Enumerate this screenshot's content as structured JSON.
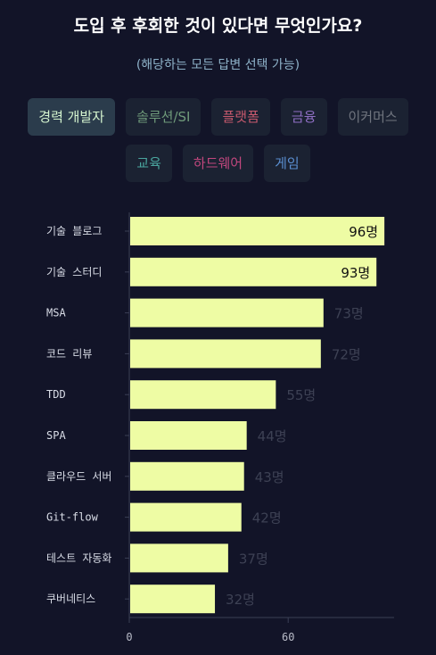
{
  "header": {
    "title": "도입 후 후회한 것이 있다면 무엇인가요?",
    "subtitle": "(해당하는 모든 답변 선택 가능)"
  },
  "tabs": [
    {
      "label": "경력 개발자",
      "color": "#d6f6d0",
      "active": true
    },
    {
      "label": "솔루션/SI",
      "color": "#6f9a7a",
      "active": false
    },
    {
      "label": "플랫폼",
      "color": "#c85a6e",
      "active": false
    },
    {
      "label": "금융",
      "color": "#8f6fc4",
      "active": false
    },
    {
      "label": "이커머스",
      "color": "#70757f",
      "active": false
    },
    {
      "label": "교육",
      "color": "#4aa59e",
      "active": false
    },
    {
      "label": "하드웨어",
      "color": "#c2477e",
      "active": false
    },
    {
      "label": "게임",
      "color": "#5a8ed0",
      "active": false
    }
  ],
  "chart_data": {
    "type": "bar",
    "orientation": "horizontal",
    "categories": [
      "기술 블로그",
      "기술 스터디",
      "MSA",
      "코드 리뷰",
      "TDD",
      "SPA",
      "클라우드 서버",
      "Git-flow",
      "테스트 자동화",
      "쿠버네티스"
    ],
    "values": [
      96,
      93,
      73,
      72,
      55,
      44,
      43,
      42,
      37,
      32
    ],
    "value_labels": [
      "96명",
      "93명",
      "73명",
      "72명",
      "55명",
      "44명",
      "43명",
      "42명",
      "37명",
      "32명"
    ],
    "xticks": [
      0,
      60
    ],
    "xlabels": [
      "0",
      "60"
    ],
    "xlim": [
      0,
      100
    ],
    "bar_color": "#eefca4",
    "grid": false
  }
}
